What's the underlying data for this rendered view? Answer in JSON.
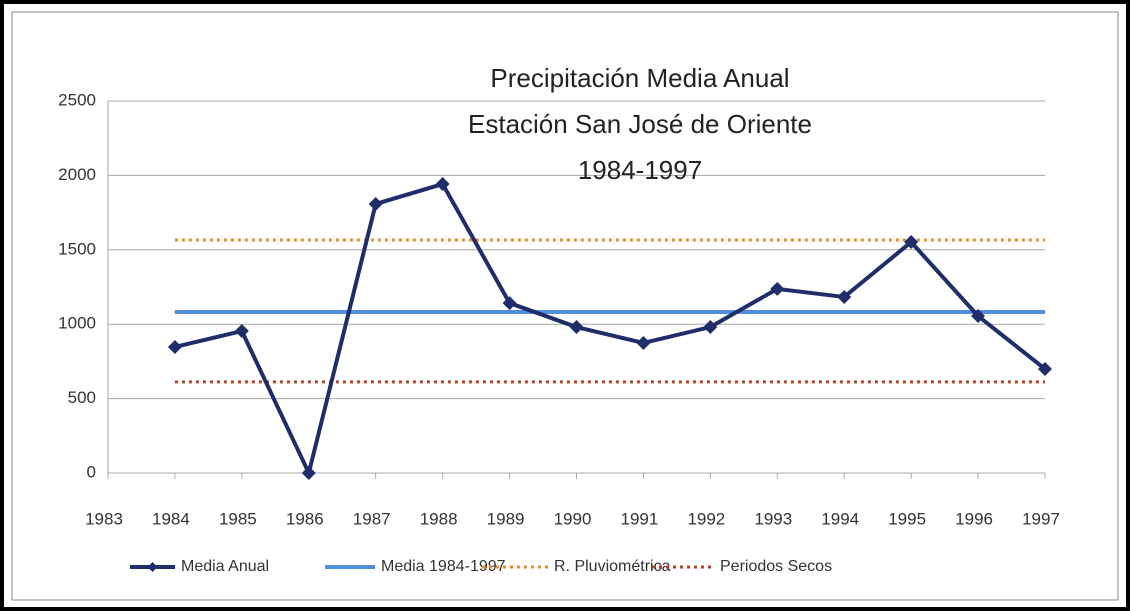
{
  "chart_data": {
    "type": "line",
    "title": [
      "Precipitación Media Anual",
      "Estación San José de Oriente",
      "1984-1997"
    ],
    "x": [
      1984,
      1985,
      1986,
      1987,
      1988,
      1989,
      1990,
      1991,
      1992,
      1993,
      1994,
      1995,
      1996,
      1997
    ],
    "series": [
      {
        "name": "Media Anual",
        "color": "#1f2d6b",
        "line_style": "solid",
        "marker": "diamond",
        "values": [
          847,
          954,
          0,
          1808,
          1942,
          1142,
          981,
          874,
          981,
          1237,
          1183,
          1552,
          1055,
          699
        ]
      },
      {
        "name": "Media 1984-1997",
        "color": "#4f8fdb",
        "line_style": "solid",
        "marker": "none",
        "values": [
          1082,
          1082,
          1082,
          1082,
          1082,
          1082,
          1082,
          1082,
          1082,
          1082,
          1082,
          1082,
          1082,
          1082
        ]
      },
      {
        "name": "R. Pluviométrica",
        "color": "#ea8a2e",
        "line_style": "dotted",
        "marker": "none",
        "values": [
          1566,
          1566,
          1566,
          1566,
          1566,
          1566,
          1566,
          1566,
          1566,
          1566,
          1566,
          1566,
          1566,
          1566
        ]
      },
      {
        "name": "Periodos Secos",
        "color": "#b3432c",
        "line_style": "dotted",
        "marker": "none",
        "values": [
          612,
          612,
          612,
          612,
          612,
          612,
          612,
          612,
          612,
          612,
          612,
          612,
          612,
          612
        ]
      }
    ],
    "xlim": [
      1983,
      1997
    ],
    "xticks": [
      1983,
      1984,
      1985,
      1986,
      1987,
      1988,
      1989,
      1990,
      1991,
      1992,
      1993,
      1994,
      1995,
      1996,
      1997
    ],
    "ylim": [
      0,
      2500
    ],
    "yticks": [
      0,
      500,
      1000,
      1500,
      2000,
      2500
    ],
    "grid": true,
    "legend": "bottom"
  }
}
